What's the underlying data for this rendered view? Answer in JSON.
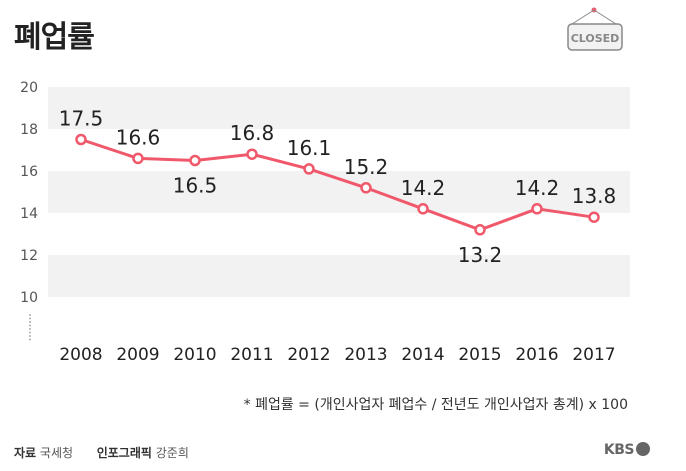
{
  "title": "폐업률",
  "sign_text": "CLOSED",
  "chart_data": {
    "type": "line",
    "title": "폐업률",
    "categories": [
      "2008",
      "2009",
      "2010",
      "2011",
      "2012",
      "2013",
      "2014",
      "2015",
      "2016",
      "2017"
    ],
    "values": [
      17.5,
      16.6,
      16.5,
      16.8,
      16.1,
      15.2,
      14.2,
      13.2,
      14.2,
      13.8
    ],
    "labels": [
      "17.5",
      "16.6",
      "16.5",
      "16.8",
      "16.1",
      "15.2",
      "14.2",
      "13.2",
      "14.2",
      "13.8"
    ],
    "label_positions": [
      "above",
      "above",
      "below",
      "above",
      "above",
      "above",
      "above",
      "below",
      "above",
      "above"
    ],
    "yticks": [
      "20",
      "18",
      "16",
      "14",
      "12",
      "10"
    ],
    "ylim": [
      10,
      20
    ],
    "axis_break": true,
    "line_color": "#f0596b",
    "band_color": "#f2f2f2",
    "xlabel": "",
    "ylabel": ""
  },
  "note": "* 폐업률 = (개인사업자 폐업수 / 전년도 개인사업자 총계) x 100",
  "footer": {
    "source_label": "자료",
    "source_value": "국세청",
    "graphic_label": "인포그래픽",
    "graphic_value": "강준희"
  },
  "brand": "KBS"
}
